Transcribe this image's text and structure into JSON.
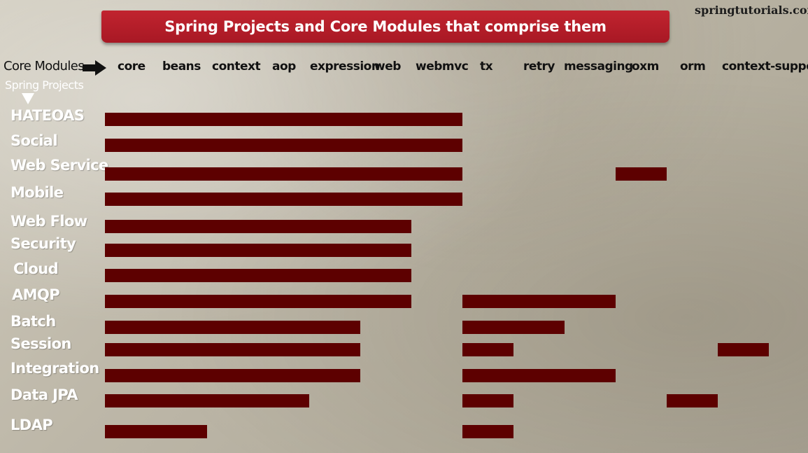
{
  "title": "Spring Projects and Core Modules that comprise them",
  "watermark": "springtutorials.com",
  "header": {
    "core_modules_label": "Core Modules",
    "spring_projects_label": "Spring Projects",
    "arrow_right_icon": "arrow-right-icon",
    "arrow_down_icon": "arrow-down-icon"
  },
  "colors": {
    "banner": "#b51e2a",
    "bar": "#5d0000",
    "project_label": "#ffffff",
    "module_label": "#111111"
  },
  "modules": [
    "core",
    "beans",
    "context",
    "aop",
    "expression",
    "web",
    "webmvc",
    "tx",
    "retry",
    "messaging",
    "oxm",
    "orm",
    "context-support"
  ],
  "projects": [
    {
      "name": "HATEOAS",
      "modules": [
        "core",
        "beans",
        "context",
        "aop",
        "expression",
        "web",
        "webmvc"
      ]
    },
    {
      "name": "Social",
      "modules": [
        "core",
        "beans",
        "context",
        "aop",
        "expression",
        "web",
        "webmvc"
      ]
    },
    {
      "name": "Web Service",
      "modules": [
        "core",
        "beans",
        "context",
        "aop",
        "expression",
        "web",
        "webmvc",
        "oxm"
      ]
    },
    {
      "name": "Mobile",
      "modules": [
        "core",
        "beans",
        "context",
        "aop",
        "expression",
        "web",
        "webmvc"
      ]
    },
    {
      "name": "Web Flow",
      "modules": [
        "core",
        "beans",
        "context",
        "aop",
        "expression",
        "web"
      ]
    },
    {
      "name": "Security",
      "modules": [
        "core",
        "beans",
        "context",
        "aop",
        "expression",
        "web"
      ]
    },
    {
      "name": "Cloud",
      "modules": [
        "core",
        "beans",
        "context",
        "aop",
        "expression",
        "web"
      ]
    },
    {
      "name": "AMQP",
      "modules": [
        "core",
        "beans",
        "context",
        "aop",
        "expression",
        "web",
        "tx",
        "retry",
        "messaging"
      ]
    },
    {
      "name": "Batch",
      "modules": [
        "core",
        "beans",
        "context",
        "aop",
        "expression",
        "tx",
        "retry"
      ]
    },
    {
      "name": "Session",
      "modules": [
        "core",
        "beans",
        "context",
        "aop",
        "expression",
        "tx",
        "context-support"
      ]
    },
    {
      "name": "Integration",
      "modules": [
        "core",
        "beans",
        "context",
        "aop",
        "expression",
        "tx",
        "retry",
        "messaging"
      ]
    },
    {
      "name": "Data JPA",
      "modules": [
        "core",
        "beans",
        "context",
        "aop",
        "tx",
        "orm"
      ]
    },
    {
      "name": "LDAP",
      "modules": [
        "core",
        "beans",
        "tx"
      ]
    }
  ]
}
